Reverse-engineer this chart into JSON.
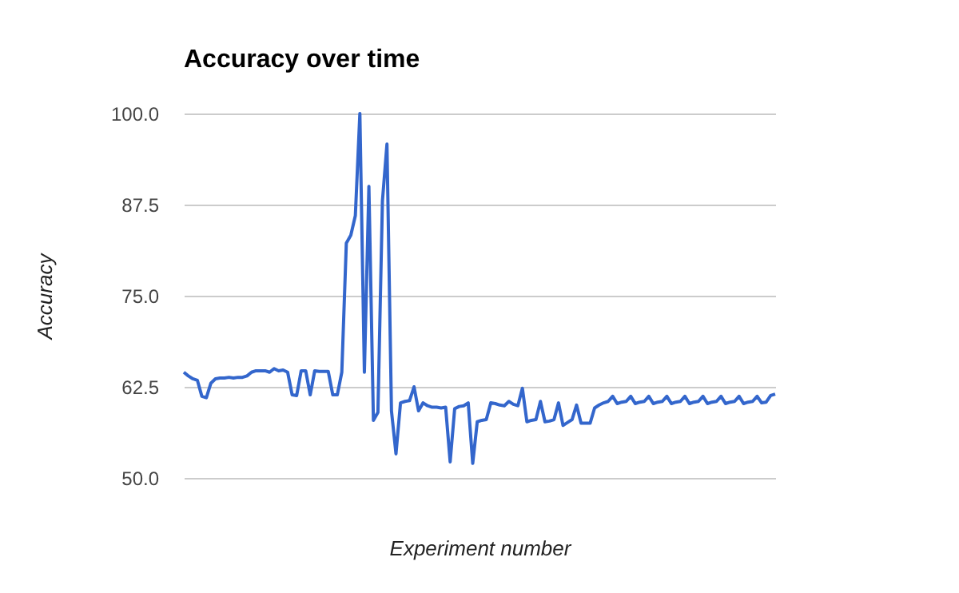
{
  "chart_data": {
    "type": "line",
    "title": "Accuracy over time",
    "xlabel": "Experiment number",
    "ylabel": "Accuracy",
    "categories": [
      null,
      null,
      null,
      null,
      null,
      null,
      null,
      null,
      null,
      null,
      null,
      null,
      null,
      null,
      null,
      null,
      null,
      null,
      null,
      null,
      null,
      null,
      null,
      null,
      null,
      null,
      null,
      null,
      null,
      null,
      null,
      null,
      null,
      null,
      null,
      null,
      null,
      null,
      null,
      null,
      null,
      null,
      null,
      null,
      null,
      null,
      null,
      null,
      null,
      null,
      null,
      null,
      null,
      null,
      null,
      null,
      null,
      null,
      null,
      null,
      null,
      null,
      null,
      null,
      null,
      null,
      null,
      null,
      null,
      null,
      null,
      null,
      null,
      null,
      null,
      null,
      null,
      null,
      null,
      null,
      null,
      null,
      null,
      null,
      null,
      null,
      null,
      null,
      null,
      null,
      null,
      null,
      null,
      null,
      null,
      null,
      null,
      null,
      null,
      null,
      null,
      null,
      null,
      null,
      null,
      null,
      null,
      null,
      null,
      null,
      null,
      null,
      null,
      null,
      null,
      null,
      null,
      null,
      null,
      null,
      null,
      null,
      null,
      null,
      null,
      null,
      null,
      null,
      null,
      null,
      null,
      null
    ],
    "series": [
      {
        "color": "#3366cc",
        "values": [
          64.5,
          64,
          63.6,
          63.4,
          61.2,
          61,
          63,
          63.6,
          63.7,
          63.7,
          63.8,
          63.7,
          63.8,
          63.8,
          64,
          64.5,
          64.7,
          64.7,
          64.7,
          64.5,
          65,
          64.7,
          64.8,
          64.5,
          61.4,
          61.3,
          64.7,
          64.7,
          61.4,
          64.7,
          64.6,
          64.6,
          64.6,
          61.4,
          61.4,
          64.5,
          82.2,
          83.3,
          86,
          100,
          64.5,
          90,
          57.9,
          59,
          88,
          95.8,
          59.2,
          53.3,
          60.3,
          60.5,
          60.6,
          62.5,
          59.2,
          60.3,
          59.9,
          59.7,
          59.7,
          59.6,
          59.7,
          52.2,
          59.5,
          59.8,
          59.9,
          60.3,
          52,
          57.7,
          57.9,
          58,
          60.3,
          60.2,
          60,
          59.9,
          60.5,
          60.1,
          59.9,
          62.3,
          57.7,
          57.9,
          58,
          60.5,
          57.7,
          57.8,
          58,
          60.3,
          57.2,
          57.6,
          58,
          60,
          57.5,
          57.5,
          57.5,
          59.6,
          60,
          60.3,
          60.5,
          61.2,
          60.2,
          60.4,
          60.5,
          61.2,
          60.2,
          60.4,
          60.5,
          61.2,
          60.2,
          60.4,
          60.5,
          61.2,
          60.2,
          60.4,
          60.5,
          61.2,
          60.2,
          60.4,
          60.5,
          61.2,
          60.2,
          60.4,
          60.5,
          61.2,
          60.2,
          60.4,
          60.5,
          61.2,
          60.2,
          60.4,
          60.5,
          61.2,
          60.3,
          60.4,
          61.3,
          61.5
        ]
      }
    ],
    "ylim": [
      50,
      100
    ],
    "yticks": [
      {
        "value": 50,
        "label": "50.0"
      },
      {
        "value": 62.5,
        "label": "62.5"
      },
      {
        "value": 75,
        "label": "75.0"
      },
      {
        "value": 87.5,
        "label": "87.5"
      },
      {
        "value": 100,
        "label": "100.0"
      }
    ],
    "grid": "y",
    "tick_labels": "y"
  }
}
